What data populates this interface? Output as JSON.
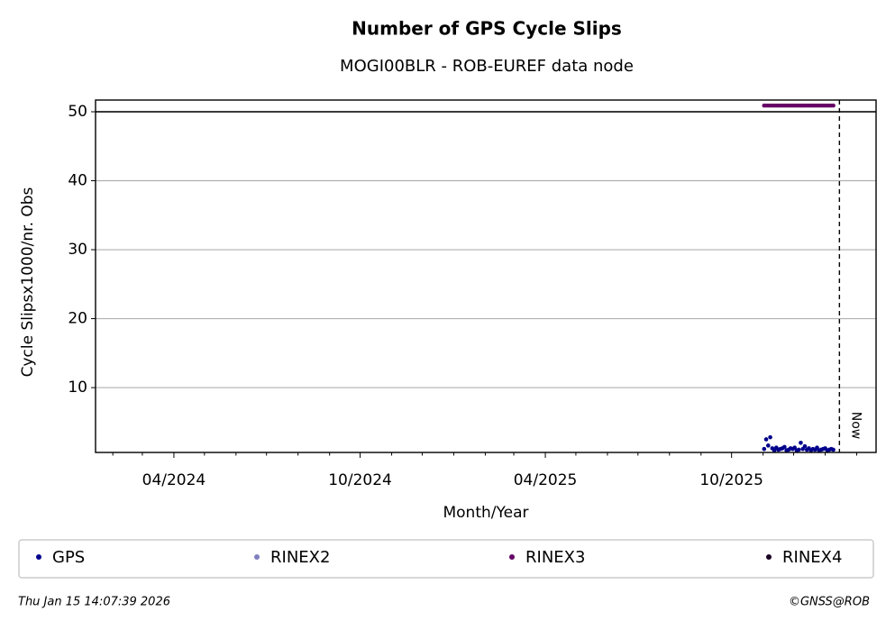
{
  "chart_data": {
    "type": "scatter",
    "title": "Number of GPS Cycle Slips",
    "subtitle": "MOGI00BLR - ROB-EUREF data node",
    "x_label": "Month/Year",
    "y_label": "Cycle Slipsx1000/nr. Obs",
    "xlim": [
      "2024-01-15",
      "2026-02-20"
    ],
    "xticks": [
      {
        "value": "2024-04-01",
        "label": "04/2024"
      },
      {
        "value": "2024-10-01",
        "label": "10/2024"
      },
      {
        "value": "2025-04-01",
        "label": "04/2025"
      },
      {
        "value": "2025-10-01",
        "label": "10/2025"
      }
    ],
    "xminorticks": [
      "2024-02-01",
      "2024-03-01",
      "2024-05-01",
      "2024-06-01",
      "2024-07-01",
      "2024-08-01",
      "2024-09-01",
      "2024-11-01",
      "2024-12-01",
      "2025-01-01",
      "2025-02-01",
      "2025-03-01",
      "2025-05-01",
      "2025-06-01",
      "2025-07-01",
      "2025-08-01",
      "2025-09-01",
      "2025-11-01",
      "2025-12-01",
      "2026-01-01",
      "2026-02-01"
    ],
    "ylim": [
      0.6,
      51.7
    ],
    "yticks": [
      10,
      20,
      30,
      40,
      50
    ],
    "grid": true,
    "hline": 50,
    "now_line": {
      "x": "2026-01-15",
      "label": "Now"
    },
    "series": [
      {
        "name": "GPS",
        "color": "#00008b",
        "x": [
          "2025-11-02",
          "2025-11-04",
          "2025-11-06",
          "2025-11-08",
          "2025-11-10",
          "2025-11-12",
          "2025-11-14",
          "2025-11-16",
          "2025-11-18",
          "2025-11-20",
          "2025-11-22",
          "2025-11-24",
          "2025-11-26",
          "2025-11-28",
          "2025-11-30",
          "2025-12-02",
          "2025-12-04",
          "2025-12-06",
          "2025-12-08",
          "2025-12-10",
          "2025-12-12",
          "2025-12-14",
          "2025-12-16",
          "2025-12-18",
          "2025-12-20",
          "2025-12-22",
          "2025-12-24",
          "2025-12-26",
          "2025-12-28",
          "2025-12-30",
          "2026-01-01",
          "2026-01-03",
          "2026-01-05",
          "2026-01-07",
          "2026-01-09"
        ],
        "values": [
          1.1,
          2.5,
          1.6,
          2.8,
          1.2,
          0.9,
          1.3,
          1.0,
          1.1,
          1.2,
          1.4,
          0.9,
          1.0,
          1.2,
          1.1,
          1.3,
          0.9,
          1.0,
          2.0,
          1.1,
          1.5,
          1.0,
          1.2,
          0.9,
          1.1,
          1.0,
          1.3,
          0.9,
          1.0,
          1.1,
          1.2,
          0.9,
          1.0,
          1.1,
          1.0
        ]
      },
      {
        "name": "RINEX2",
        "color": "#8080c0",
        "x": [],
        "values": []
      },
      {
        "name": "RINEX3",
        "color": "#660066",
        "x": [
          "2025-11-02",
          "2025-11-04",
          "2025-11-06",
          "2025-11-08",
          "2025-11-10",
          "2025-11-12",
          "2025-11-14",
          "2025-11-16",
          "2025-11-18",
          "2025-11-20",
          "2025-11-22",
          "2025-11-24",
          "2025-11-26",
          "2025-11-28",
          "2025-11-30",
          "2025-12-02",
          "2025-12-04",
          "2025-12-06",
          "2025-12-08",
          "2025-12-10",
          "2025-12-12",
          "2025-12-14",
          "2025-12-16",
          "2025-12-18",
          "2025-12-20",
          "2025-12-22",
          "2025-12-24",
          "2025-12-26",
          "2025-12-28",
          "2025-12-30",
          "2026-01-01",
          "2026-01-03",
          "2026-01-05",
          "2026-01-07",
          "2026-01-09"
        ],
        "values": [
          50.9,
          50.9,
          50.9,
          50.9,
          50.9,
          50.9,
          50.9,
          50.9,
          50.9,
          50.9,
          50.9,
          50.9,
          50.9,
          50.9,
          50.9,
          50.9,
          50.9,
          50.9,
          50.9,
          50.9,
          50.9,
          50.9,
          50.9,
          50.9,
          50.9,
          50.9,
          50.9,
          50.9,
          50.9,
          50.9,
          50.9,
          50.9,
          50.9,
          50.9,
          50.9
        ]
      },
      {
        "name": "RINEX4",
        "color": "#1a0022",
        "x": [],
        "values": []
      }
    ],
    "footer_left": "Thu Jan 15 14:07:39 2026",
    "footer_right": "©GNSS@ROB"
  }
}
